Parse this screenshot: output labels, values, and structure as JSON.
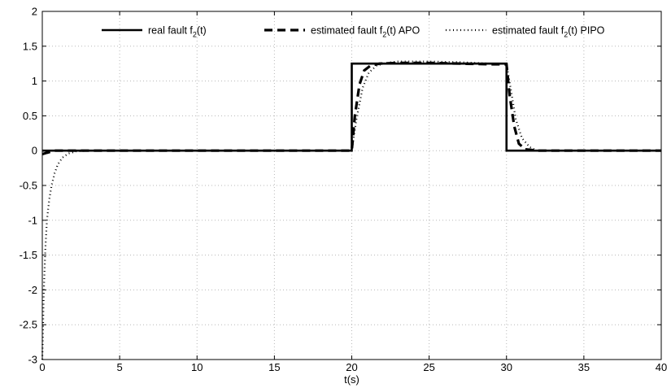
{
  "chart_data": {
    "type": "line",
    "title": "",
    "xlabel": "t(s)",
    "ylabel": "",
    "xlim": [
      0,
      40
    ],
    "ylim": [
      -3,
      2
    ],
    "grid": true,
    "legend_position": "top-right",
    "x_ticks": [
      "0",
      "5",
      "10",
      "15",
      "20",
      "25",
      "30",
      "35",
      "40"
    ],
    "y_ticks": [
      "2",
      "1.5",
      "1",
      "0.5",
      "0",
      "-0.5",
      "-1",
      "-1.5",
      "-2",
      "-2.5",
      "-3"
    ],
    "legend": [
      {
        "prefix": "real fault f",
        "sub": "2",
        "suffix": "(t)"
      },
      {
        "prefix": "estimated fault f",
        "sub": "2",
        "suffix": "(t) APO"
      },
      {
        "prefix": "estimated fault f",
        "sub": "2",
        "suffix": "(t) PIPO"
      }
    ],
    "series": [
      {
        "style": "solid",
        "color": "#000000",
        "x": [
          0,
          20,
          20,
          30,
          30,
          40
        ],
        "y": [
          0,
          0,
          1.25,
          1.25,
          0,
          0
        ]
      },
      {
        "style": "dashed",
        "color": "#000000",
        "x": [
          0,
          0.3,
          0.8,
          20,
          20.2,
          20.5,
          20.8,
          21.2,
          21.8,
          23,
          25,
          27,
          29,
          30,
          30.2,
          30.5,
          30.8,
          31.2,
          32,
          40
        ],
        "y": [
          -0.05,
          -0.03,
          0,
          0,
          0.5,
          0.95,
          1.15,
          1.22,
          1.25,
          1.26,
          1.26,
          1.25,
          1.24,
          1.24,
          0.8,
          0.35,
          0.1,
          0.02,
          0,
          0
        ]
      },
      {
        "style": "dotted",
        "color": "#000000",
        "x": [
          0,
          0.05,
          0.1,
          0.2,
          0.3,
          0.45,
          0.6,
          0.8,
          1.0,
          1.3,
          1.7,
          2.2,
          3,
          20,
          20.3,
          20.7,
          21.1,
          21.6,
          22.2,
          23,
          25,
          27,
          29,
          30,
          30.3,
          30.6,
          31,
          31.5,
          32,
          40
        ],
        "y": [
          -3,
          -2.5,
          -2.0,
          -1.4,
          -1.0,
          -0.7,
          -0.5,
          -0.32,
          -0.2,
          -0.1,
          -0.04,
          -0.01,
          0,
          0,
          0.45,
          0.9,
          1.12,
          1.22,
          1.26,
          1.28,
          1.28,
          1.27,
          1.25,
          1.25,
          0.85,
          0.45,
          0.18,
          0.05,
          0,
          0
        ]
      }
    ]
  }
}
